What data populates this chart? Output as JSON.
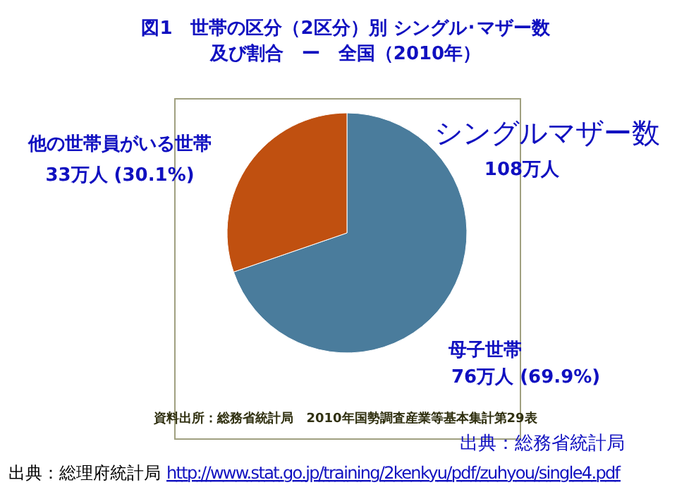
{
  "chart_data": {
    "type": "pie",
    "title": "図1　世帯の区分（2区分）別 シングル･マザー数",
    "subtitle": "及び割合　ー　全国（2010年）",
    "categories": [
      "母子世帯",
      "他の世帯員がいる世帯"
    ],
    "values": [
      76,
      33
    ],
    "colors": [
      "#4a7c9c",
      "#c05010"
    ],
    "value_labels": [
      "76万人 (69.9%)",
      "33万人 (30.1%)"
    ],
    "annotations": [
      "シングルマザー数",
      "108万人",
      "資料出所：総務省統計局　2010年国勢調査産業等基本集計第29表",
      "出典：総務省統計局",
      "出典：総理府統計局",
      "http://www.stat.go.jp/training/2kenkyu/pdf/zuhyou/single4.pdf"
    ]
  }
}
